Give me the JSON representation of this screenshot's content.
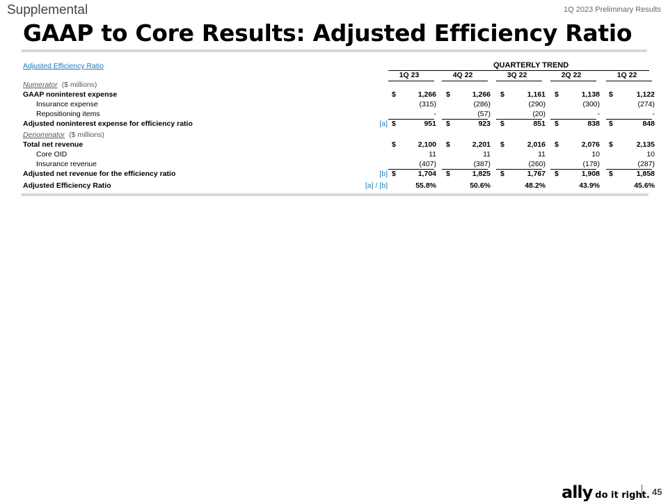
{
  "header": {
    "section": "Supplemental",
    "report": "1Q 2023 Preliminary Results",
    "title": "GAAP to Core Results: Adjusted Efficiency Ratio"
  },
  "table": {
    "link_label": "Adjusted Efficiency Ratio",
    "trend_label": "QUARTERLY TREND",
    "columns": [
      "1Q 23",
      "4Q 22",
      "3Q 22",
      "2Q 22",
      "1Q 22"
    ],
    "rows": [
      {
        "label": "Numerator",
        "unit": "($ millions)",
        "type": "section"
      },
      {
        "label": "GAAP noninterest expense",
        "bold": true,
        "currency": true,
        "values": [
          "1,266",
          "1,266",
          "1,161",
          "1,138",
          "1,122"
        ]
      },
      {
        "label": "Insurance expense",
        "indent": true,
        "values": [
          "(315)",
          "(286)",
          "(290)",
          "(300)",
          "(274)"
        ]
      },
      {
        "label": "Repositioning items",
        "indent": true,
        "values": [
          "-",
          "(57)",
          "(20)",
          "-",
          "-"
        ]
      },
      {
        "label": "Adjusted noninterest expense for efficiency ratio",
        "bold": true,
        "currency": true,
        "ref": "[a]",
        "values": [
          "951",
          "923",
          "851",
          "838",
          "848"
        ]
      },
      {
        "label": "Denominator",
        "unit": "($ millions)",
        "type": "section"
      },
      {
        "label": "Total net revenue",
        "bold": true,
        "currency": true,
        "values": [
          "2,100",
          "2,201",
          "2,016",
          "2,076",
          "2,135"
        ]
      },
      {
        "label": "Core OID",
        "indent": true,
        "values": [
          "11",
          "11",
          "11",
          "10",
          "10"
        ]
      },
      {
        "label": "Insurance revenue",
        "indent": true,
        "values": [
          "(407)",
          "(387)",
          "(260)",
          "(178)",
          "(287)"
        ]
      },
      {
        "label": "Adjusted net revenue for the efficiency ratio",
        "bold": true,
        "currency": true,
        "ref": "[b]",
        "values": [
          "1,704",
          "1,825",
          "1,767",
          "1,908",
          "1,858"
        ]
      },
      {
        "label": "Adjusted Efficiency Ratio",
        "bold": true,
        "ref": "[a] / [b]",
        "values": [
          "55.8%",
          "50.6%",
          "48.2%",
          "43.9%",
          "45.6%"
        ]
      }
    ],
    "currency_symbol": "$"
  },
  "footer": {
    "brand": "ally",
    "tagline": "do it right.",
    "page": "45"
  }
}
